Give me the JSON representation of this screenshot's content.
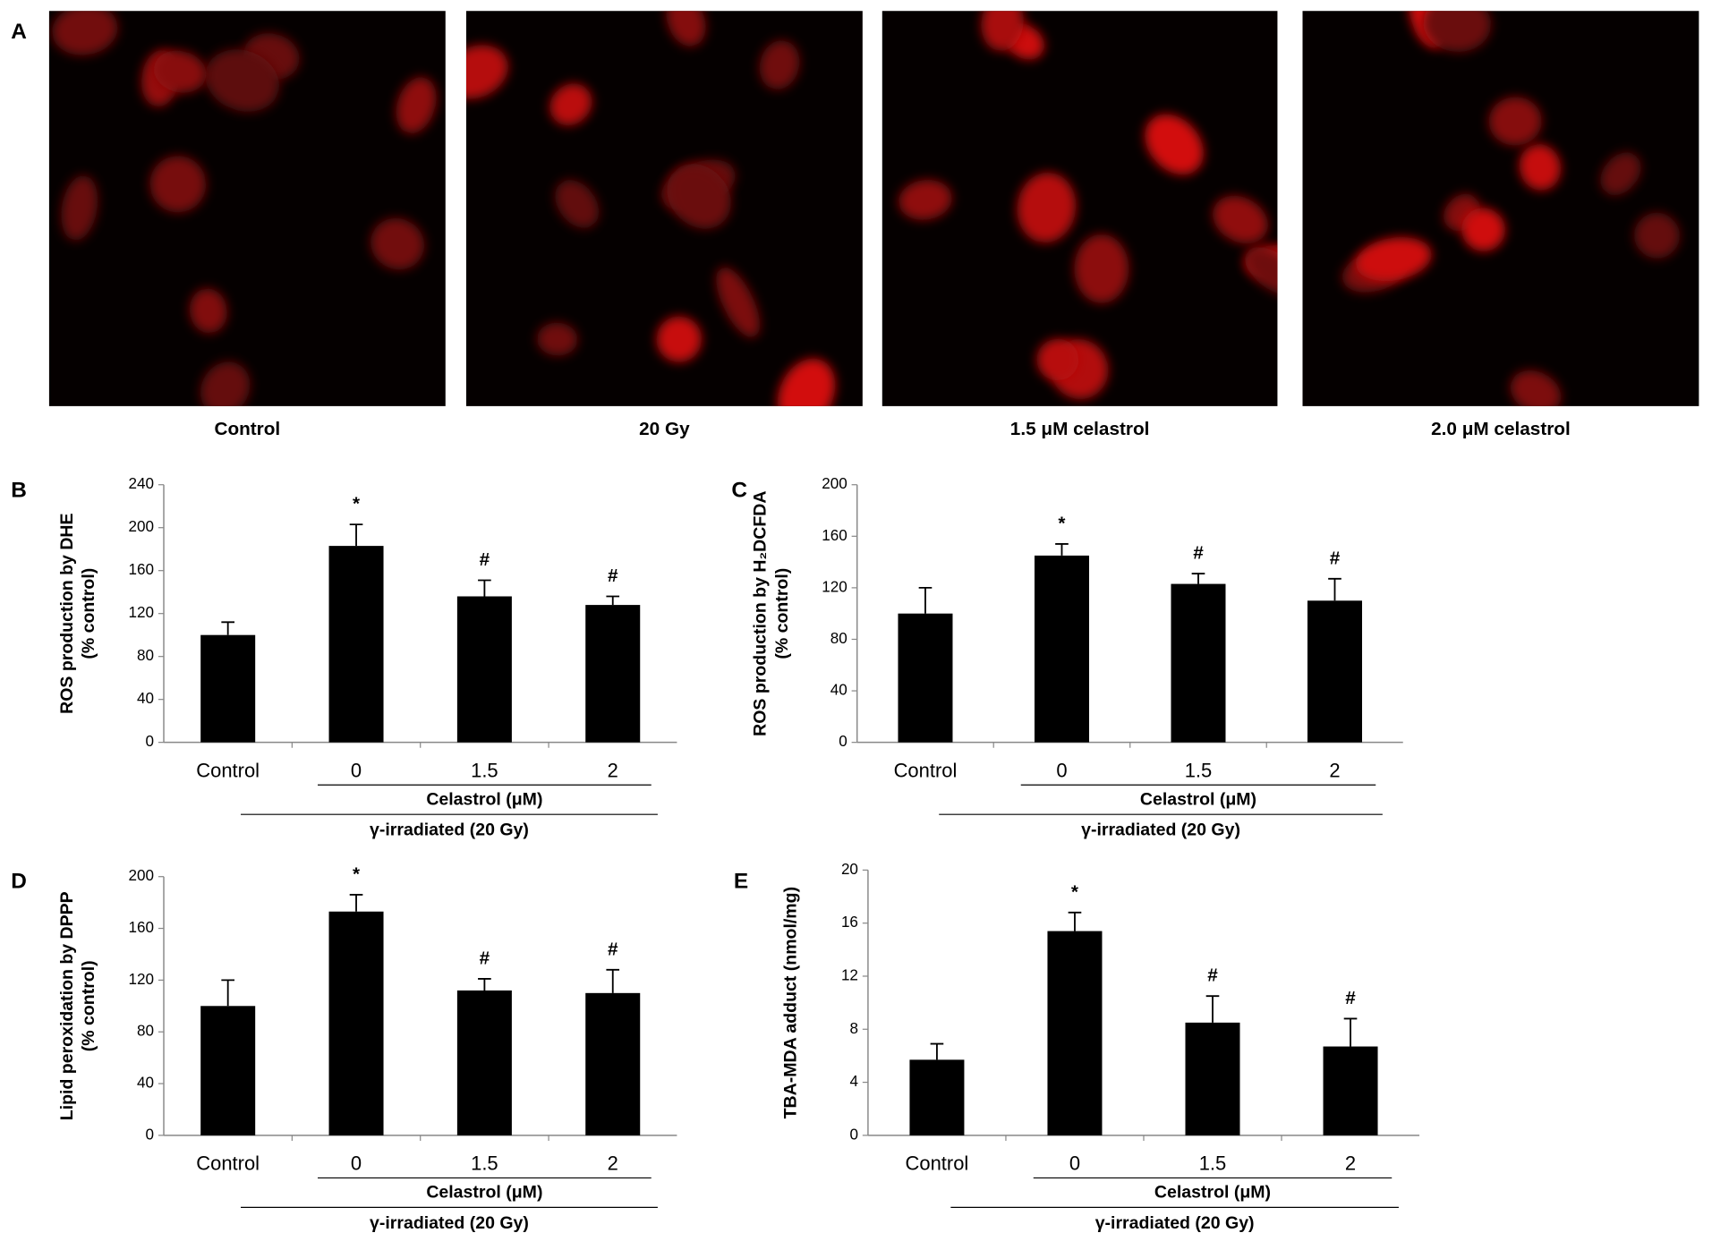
{
  "panel_a": {
    "panel": "A",
    "images": [
      "Control",
      "20 Gy",
      "1.5 μM celastrol",
      "2.0 μM celastrol"
    ]
  },
  "chart_data": [
    {
      "type": "bar",
      "panel": "B",
      "ylabel": "ROS production by DHE",
      "ylabel_unit": "(% control)",
      "categories": [
        "Control",
        "0",
        "1.5",
        "2"
      ],
      "values": [
        100,
        183,
        136,
        128
      ],
      "errors": [
        12,
        20,
        15,
        8
      ],
      "annotations": [
        null,
        "*",
        "#",
        "#"
      ],
      "subgroup_label": "Celastrol (μM)",
      "group_label": "γ-irradiated (20 Gy)",
      "color": "#000000",
      "ylim": [
        0,
        240
      ],
      "yticks": [
        0,
        40,
        80,
        120,
        160,
        200,
        240
      ]
    },
    {
      "type": "bar",
      "panel": "C",
      "ylabel": "ROS production by H₂DCFDA",
      "ylabel_unit": "(% control)",
      "categories": [
        "Control",
        "0",
        "1.5",
        "2"
      ],
      "values": [
        100,
        145,
        123,
        110
      ],
      "errors": [
        20,
        9,
        8,
        17
      ],
      "annotations": [
        null,
        "*",
        "#",
        "#"
      ],
      "subgroup_label": "Celastrol (μM)",
      "group_label": "γ-irradiated (20 Gy)",
      "color": "#000000",
      "ylim": [
        0,
        200
      ],
      "yticks": [
        0,
        40,
        80,
        120,
        160,
        200
      ]
    },
    {
      "type": "bar",
      "panel": "D",
      "ylabel": "Lipid peroxidation by DPPP",
      "ylabel_unit": "(% control)",
      "categories": [
        "Control",
        "0",
        "1.5",
        "2"
      ],
      "values": [
        100,
        173,
        112,
        110
      ],
      "errors": [
        20,
        13,
        9,
        18
      ],
      "annotations": [
        null,
        "*",
        "#",
        "#"
      ],
      "subgroup_label": "Celastrol (μM)",
      "group_label": "γ-irradiated (20 Gy)",
      "color": "#000000",
      "ylim": [
        0,
        200
      ],
      "yticks": [
        0,
        40,
        80,
        120,
        160,
        200
      ]
    },
    {
      "type": "bar",
      "panel": "E",
      "ylabel": "TBA-MDA adduct (nmol/mg)",
      "categories": [
        "Control",
        "0",
        "1.5",
        "2"
      ],
      "values": [
        5.7,
        15.4,
        8.5,
        6.7
      ],
      "errors": [
        1.2,
        1.4,
        2.0,
        2.1
      ],
      "annotations": [
        null,
        "*",
        "#",
        "#"
      ],
      "subgroup_label": "Celastrol (μM)",
      "group_label": "γ-irradiated (20 Gy)",
      "color": "#000000",
      "ylim": [
        0,
        20
      ],
      "yticks": [
        0,
        4,
        8,
        12,
        16,
        20
      ]
    }
  ]
}
